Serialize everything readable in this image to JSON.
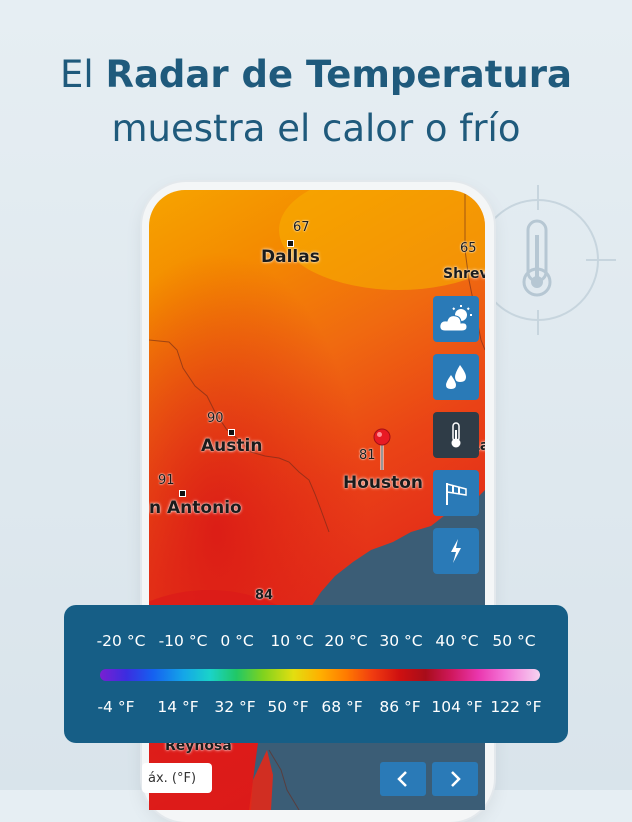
{
  "headline": {
    "line1_prefix": "El ",
    "line1_bold": "Radar de Temperatura",
    "line2": "muestra el calor o frío"
  },
  "map": {
    "cities": [
      {
        "name": "Dallas",
        "temp": "67"
      },
      {
        "name": "Shrev",
        "temp": "65"
      },
      {
        "name": "Austin",
        "temp": "90"
      },
      {
        "name": "n Antonio",
        "temp": "91"
      },
      {
        "name": "Houston",
        "temp": "81"
      },
      {
        "name": "Reynosa",
        "temp": ""
      },
      {
        "name": "La",
        "temp": ""
      }
    ],
    "coast_temp": "84"
  },
  "toolbar": {
    "items": [
      {
        "icon": "cloud-sun-icon",
        "active": false
      },
      {
        "icon": "drops-icon",
        "active": false
      },
      {
        "icon": "thermometer-icon",
        "active": true
      },
      {
        "icon": "windsock-icon",
        "active": false
      },
      {
        "icon": "lightning-icon",
        "active": false
      }
    ]
  },
  "legend": {
    "celsius": [
      "-20 °C",
      "-10 °C",
      "0 °C",
      "10 °C",
      "20 °C",
      "30 °C",
      "40 °C",
      "50 °C"
    ],
    "fahrenheit": [
      "-4 °F",
      "14 °F",
      "32 °F",
      "50 °F",
      "68 °F",
      "86 °F",
      "104 °F",
      "122 °F"
    ]
  },
  "bottom": {
    "unit_label": "áx. (°F)"
  },
  "colors": {
    "title": "#1f5a7c",
    "legend_bg": "#165e86",
    "tool_bg": "#2a7ab7",
    "tool_active_bg": "#2f3c47",
    "sea": "#3b5d76"
  }
}
